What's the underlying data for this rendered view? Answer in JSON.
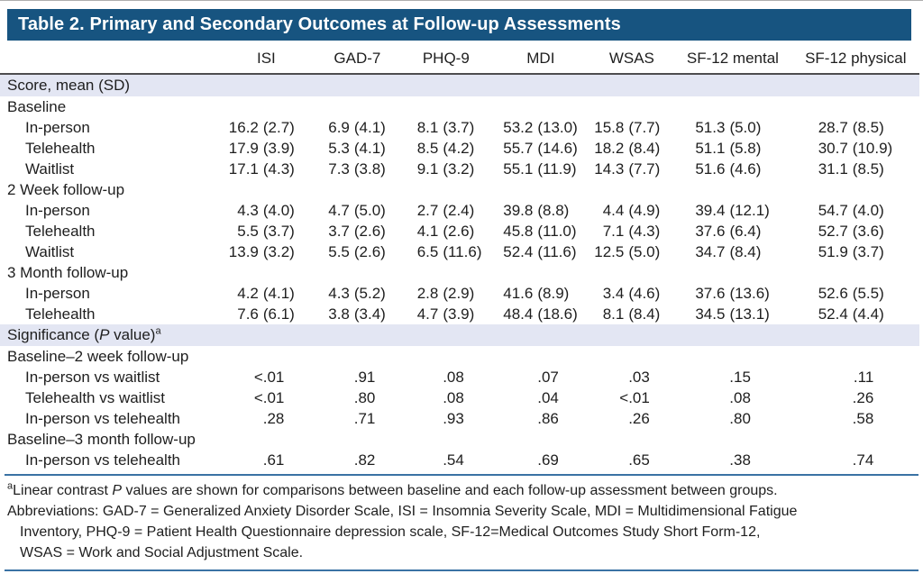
{
  "colors": {
    "title_bar_bg": "#175480",
    "section_band_bg": "#E3E6F3",
    "rule_blue": "#3A72A4"
  },
  "table": {
    "title": "Table 2. Primary and Secondary Outcomes at Follow-up Assessments",
    "columns": [
      "ISI",
      "GAD-7",
      "PHQ-9",
      "MDI",
      "WSAS",
      "SF-12 mental",
      "SF-12 physical"
    ],
    "rows": [
      {
        "type": "section",
        "label": "Score, mean (SD)"
      },
      {
        "type": "group",
        "label": "Baseline"
      },
      {
        "type": "score",
        "label": "In-person",
        "values": [
          "16.2 (2.7)",
          "6.9 (4.1)",
          "8.1 (3.7)",
          "53.2 (13.0)",
          "15.8 (7.7)",
          "51.3 (5.0)",
          "28.7 (8.5)"
        ]
      },
      {
        "type": "score",
        "label": "Telehealth",
        "values": [
          "17.9 (3.9)",
          "5.3 (4.1)",
          "8.5 (4.2)",
          "55.7 (14.6)",
          "18.2 (8.4)",
          "51.1 (5.8)",
          "30.7 (10.9)"
        ]
      },
      {
        "type": "score",
        "label": "Waitlist",
        "values": [
          "17.1 (4.3)",
          "7.3 (3.8)",
          "9.1 (3.2)",
          "55.1 (11.9)",
          "14.3 (7.7)",
          "51.6 (4.6)",
          "31.1 (8.5)"
        ]
      },
      {
        "type": "group",
        "label": "2 Week follow-up"
      },
      {
        "type": "score",
        "label": "In-person",
        "values": [
          "4.3 (4.0)",
          "4.7 (5.0)",
          "2.7 (2.4)",
          "39.8 (8.8)",
          "4.4 (4.9)",
          "39.4 (12.1)",
          "54.7 (4.0)"
        ]
      },
      {
        "type": "score",
        "label": "Telehealth",
        "values": [
          "5.5 (3.7)",
          "3.7 (2.6)",
          "4.1 (2.6)",
          "45.8 (11.0)",
          "7.1 (4.3)",
          "37.6 (6.4)",
          "52.7 (3.6)"
        ]
      },
      {
        "type": "score",
        "label": "Waitlist",
        "values": [
          "13.9 (3.2)",
          "5.5 (2.6)",
          "6.5 (11.6)",
          "52.4 (11.6)",
          "12.5 (5.0)",
          "34.7 (8.4)",
          "51.9 (3.7)"
        ]
      },
      {
        "type": "group",
        "label": "3 Month follow-up"
      },
      {
        "type": "score",
        "label": "In-person",
        "values": [
          "4.2 (4.1)",
          "4.3 (5.2)",
          "2.8 (2.9)",
          "41.6 (8.9)",
          "3.4 (4.6)",
          "37.6 (13.6)",
          "52.6 (5.5)"
        ]
      },
      {
        "type": "score",
        "label": "Telehealth",
        "values": [
          "7.6 (6.1)",
          "3.8 (3.4)",
          "4.7 (3.9)",
          "48.4 (18.6)",
          "8.1 (8.4)",
          "34.5 (13.1)",
          "52.4 (4.4)"
        ]
      },
      {
        "type": "section",
        "label": "Significance (P value)",
        "sup": "a"
      },
      {
        "type": "group",
        "label": "Baseline–2 week follow-up"
      },
      {
        "type": "pvalue",
        "label": "In-person vs waitlist",
        "values": [
          "<.01",
          ".91",
          ".08",
          ".07",
          ".03",
          ".15",
          ".11"
        ]
      },
      {
        "type": "pvalue",
        "label": "Telehealth vs waitlist",
        "values": [
          "<.01",
          ".80",
          ".08",
          ".04",
          "<.01",
          ".08",
          ".26"
        ]
      },
      {
        "type": "pvalue",
        "label": "In-person vs telehealth",
        "values": [
          ".28",
          ".71",
          ".93",
          ".86",
          ".26",
          ".80",
          ".58"
        ]
      },
      {
        "type": "group",
        "label": "Baseline–3 month follow-up"
      },
      {
        "type": "pvalue",
        "label": "In-person vs telehealth",
        "values": [
          ".61",
          ".82",
          ".54",
          ".69",
          ".65",
          ".38",
          ".74"
        ]
      }
    ]
  },
  "footnotes": {
    "note_a": {
      "sup": "a",
      "text": "Linear contrast P values are shown for comparisons between baseline and each follow-up assessment between groups."
    },
    "abbreviations_lines": [
      "Abbreviations: GAD-7 = Generalized Anxiety Disorder Scale, ISI = Insomnia Severity Scale, MDI = Multidimensional Fatigue",
      "Inventory, PHQ-9 = Patient Health Questionnaire depression scale, SF-12=Medical Outcomes Study Short Form-12,",
      "WSAS = Work and Social Adjustment Scale."
    ]
  }
}
